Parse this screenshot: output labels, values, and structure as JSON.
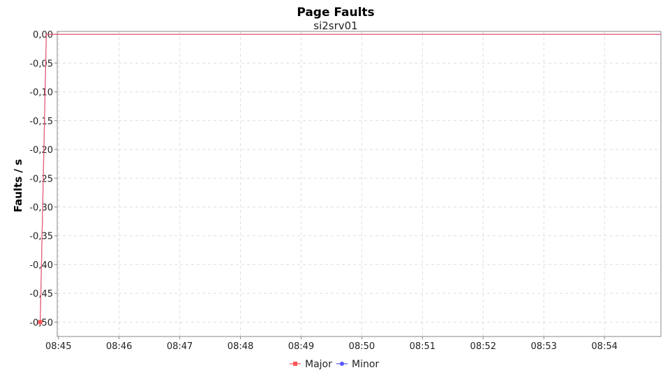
{
  "chart_data": {
    "type": "line",
    "title": "Page Faults",
    "subtitle": "si2srv01",
    "xlabel": "",
    "ylabel": "Faults / s",
    "x_ticks": [
      "08:45",
      "08:46",
      "08:47",
      "08:48",
      "08:49",
      "08:50",
      "08:51",
      "08:52",
      "08:53",
      "08:54"
    ],
    "x_tick_minutes": [
      45,
      46,
      47,
      48,
      49,
      50,
      51,
      52,
      53,
      54
    ],
    "xlim": [
      "08:44.98",
      "08:54.93"
    ],
    "y_ticks": [
      "0,00",
      "-0,05",
      "-0,10",
      "-0,15",
      "-0,20",
      "-0,25",
      "-0,30",
      "-0,35",
      "-0,40",
      "-0,45",
      "-0,50"
    ],
    "y_tick_values": [
      0,
      -0.05,
      -0.1,
      -0.15,
      -0.2,
      -0.25,
      -0.3,
      -0.35,
      -0.4,
      -0.45,
      -0.5
    ],
    "ylim": [
      -0.525,
      0.005
    ],
    "grid": true,
    "legend_position": "bottom-center",
    "series": [
      {
        "name": "Major",
        "color": "#ff5555",
        "marker": "square",
        "x": [
          "08:44.70",
          "08:44.80",
          "08:54.93"
        ],
        "values": [
          -0.5,
          0,
          0
        ]
      },
      {
        "name": "Minor",
        "color": "#5555ff",
        "marker": "circle",
        "x": [
          "08:44.70",
          "08:44.80",
          "08:54.93"
        ],
        "values": [
          -0.5,
          0,
          0
        ]
      }
    ]
  }
}
